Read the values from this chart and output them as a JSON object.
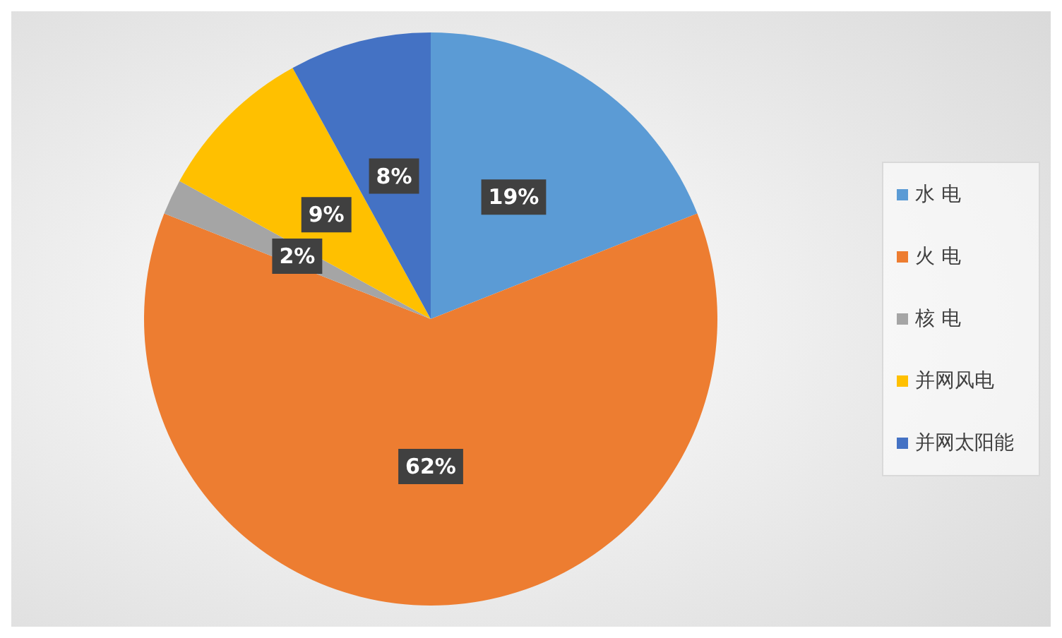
{
  "chart_data": {
    "type": "pie",
    "categories": [
      "水 电",
      "火 电",
      "核 电",
      "并网风电",
      "并网太阳能"
    ],
    "values": [
      19,
      62,
      2,
      9,
      8
    ],
    "value_labels": [
      "19%",
      "62%",
      "2%",
      "9%",
      "8%"
    ],
    "colors": [
      "#5b9bd5",
      "#ed7d31",
      "#a5a5a5",
      "#ffc000",
      "#4472c4"
    ],
    "legend": "right"
  }
}
